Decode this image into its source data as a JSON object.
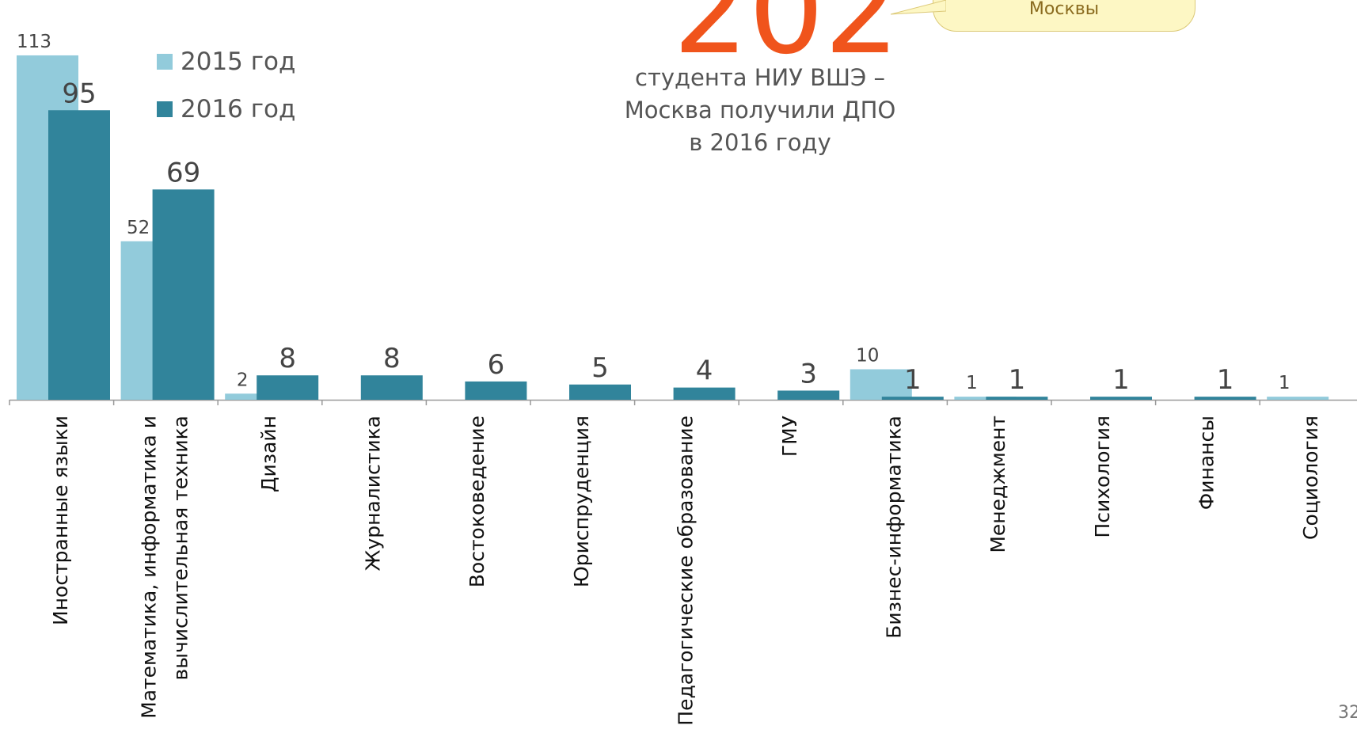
{
  "headline": {
    "number": "202",
    "caption": "студента НИУ ВШЭ – Москва получили ДПО в 2016 году"
  },
  "callout": {
    "text": "Москвы"
  },
  "slide_number": "32",
  "colors": {
    "series2015": "#92cbdb",
    "series2016": "#31849b",
    "accent": "#f0541c"
  },
  "chart_data": {
    "type": "bar",
    "title": "",
    "xlabel": "",
    "ylabel": "",
    "ylim": [
      0,
      120
    ],
    "legend_position": "top-left",
    "grid": false,
    "categories": [
      "Иностранные языки",
      "Математика, информатика и вычислительная техника",
      "Дизайн",
      "Журналистика",
      "Востоковедение",
      "Юриспруденция",
      "Педагогические образование",
      "ГМУ",
      "Бизнес-информатика",
      "Менеджмент",
      "Психология",
      "Финансы",
      "Социология"
    ],
    "series": [
      {
        "name": "2015 год",
        "values": [
          113,
          52,
          2,
          null,
          null,
          null,
          null,
          null,
          10,
          1,
          null,
          null,
          1
        ]
      },
      {
        "name": "2016 год",
        "values": [
          95,
          69,
          8,
          8,
          6,
          5,
          4,
          3,
          1,
          1,
          1,
          1,
          null
        ]
      }
    ]
  }
}
